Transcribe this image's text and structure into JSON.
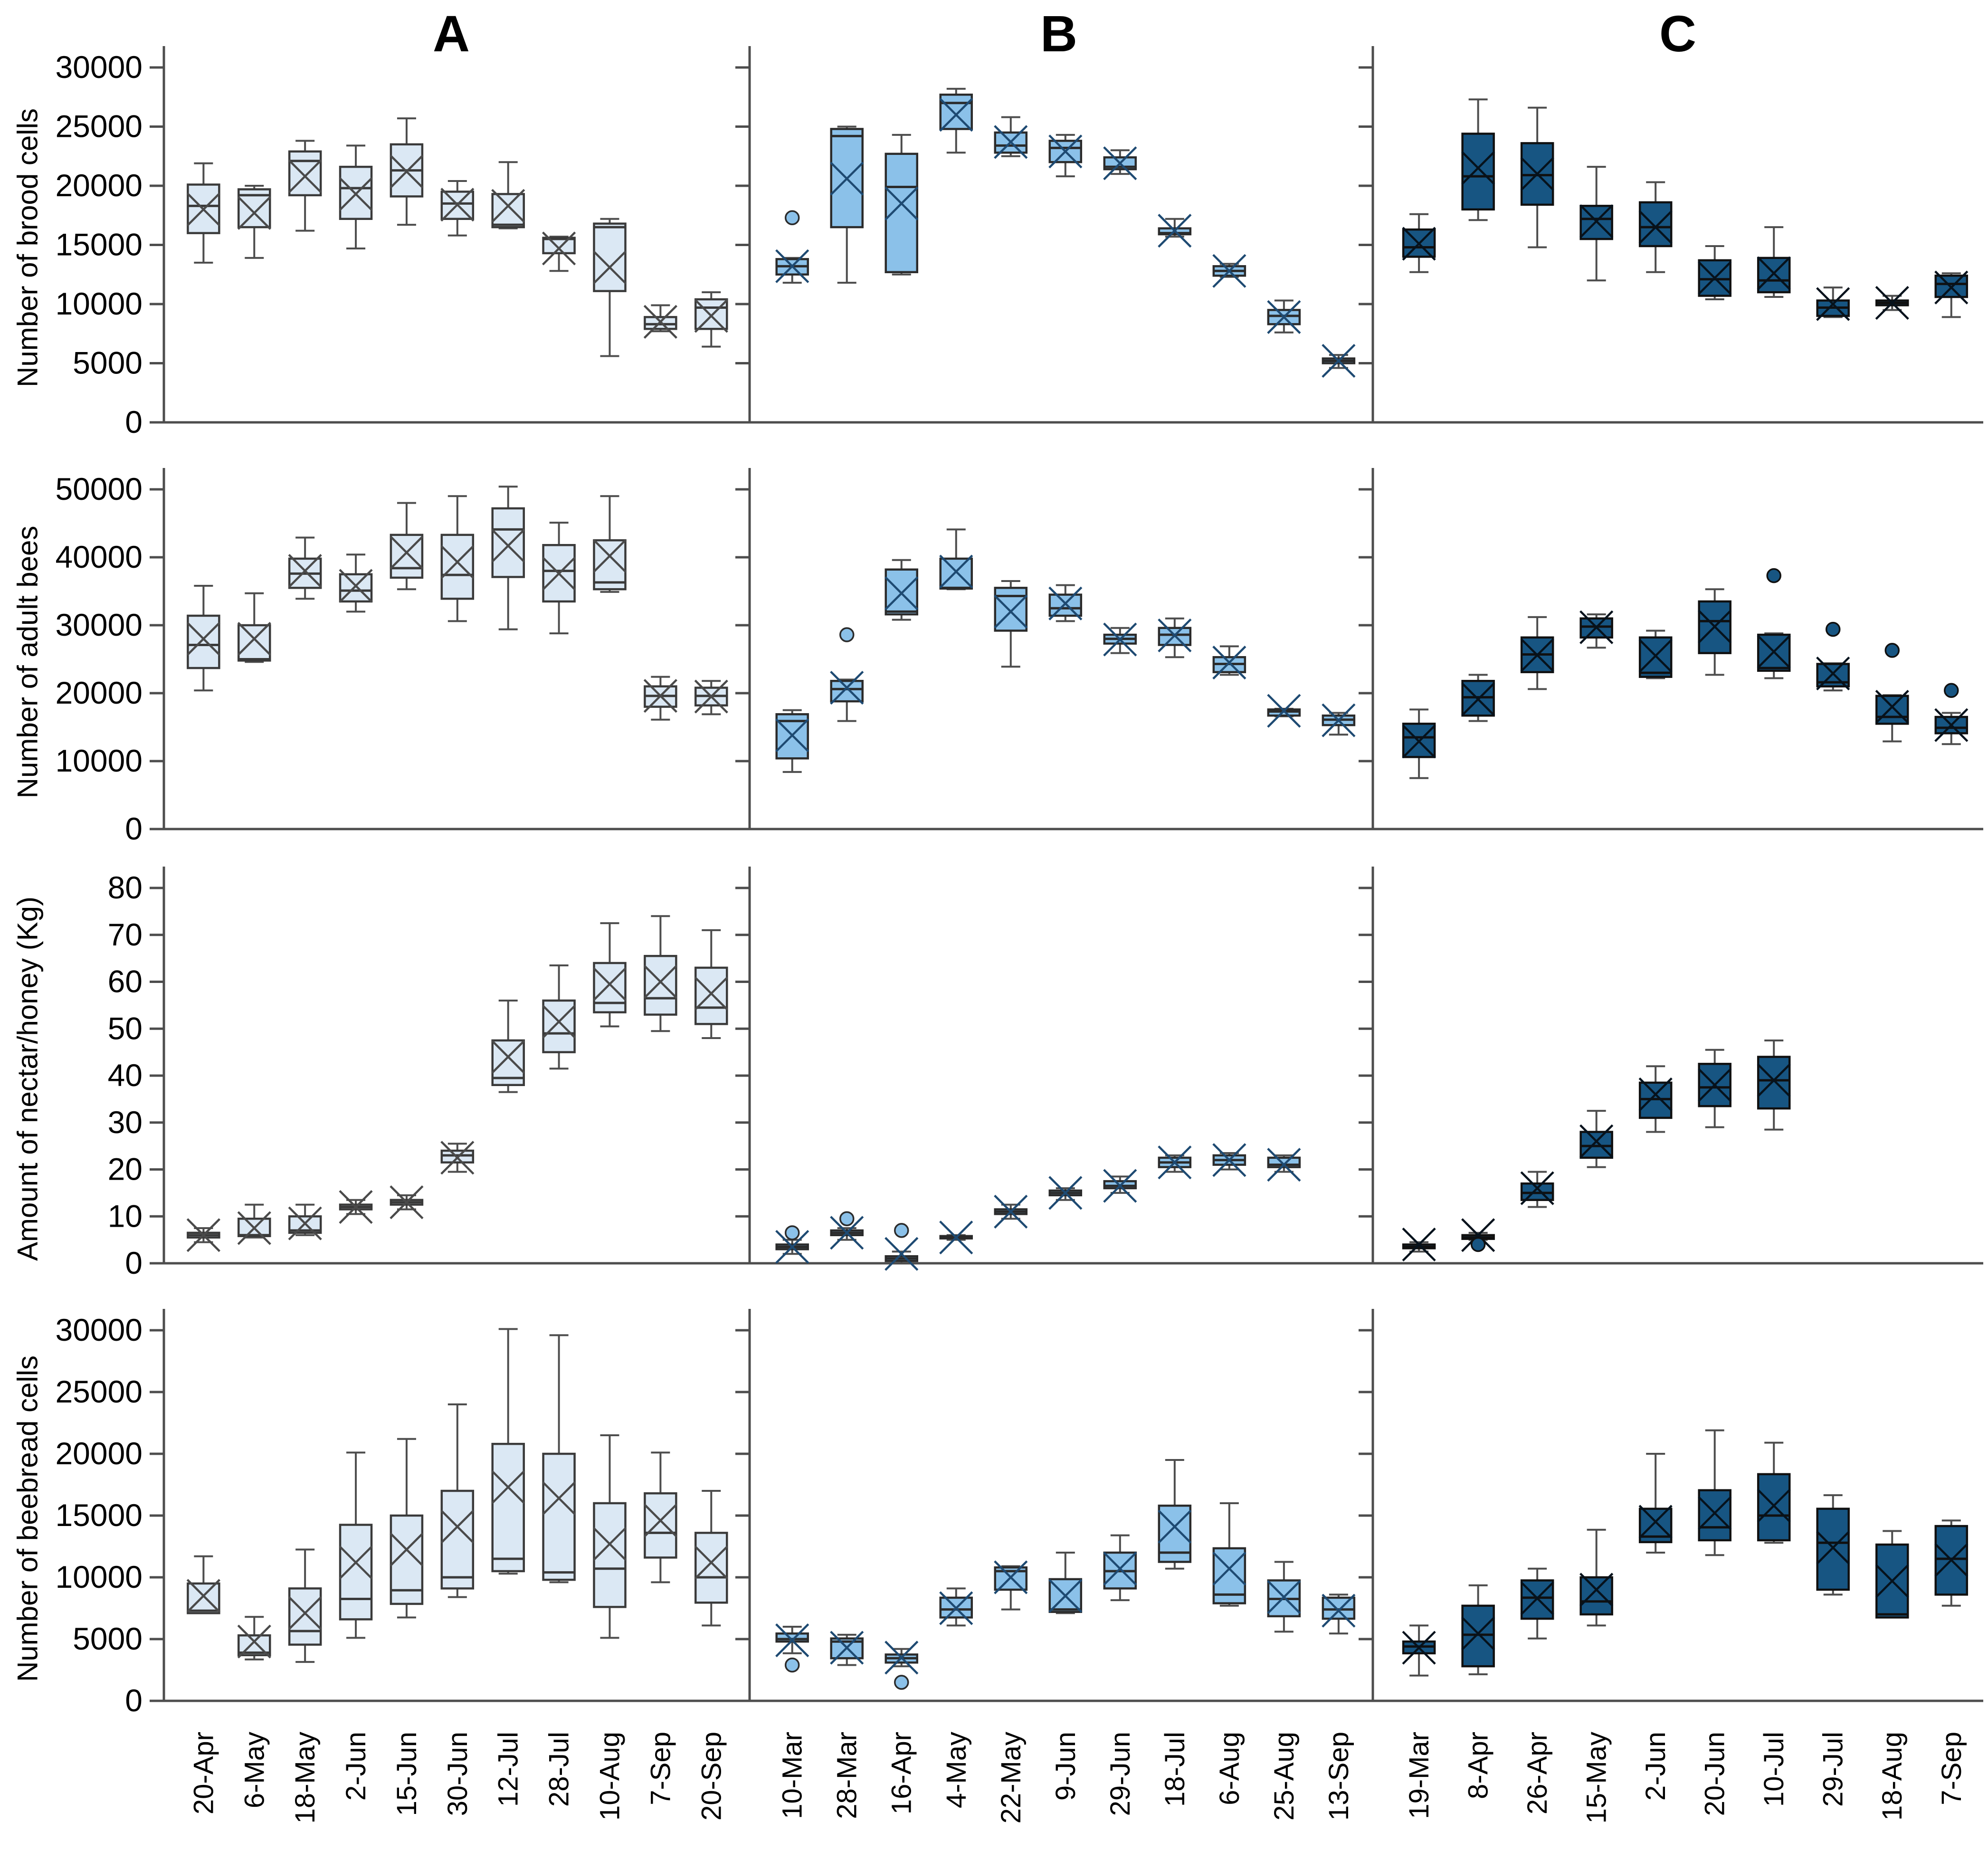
{
  "figure_title": "",
  "chart_data": {
    "type": "box",
    "title": "",
    "xlabel": "",
    "grid": false,
    "legend": "none",
    "columns": [
      {
        "key": "A",
        "label": "A",
        "fill": "#dbe8f4",
        "stroke": "#3a3a3a",
        "mean_stroke": "#4a4a4a",
        "dates": [
          "20-Apr",
          "6-May",
          "18-May",
          "2-Jun",
          "15-Jun",
          "30-Jun",
          "12-Jul",
          "28-Jul",
          "10-Aug",
          "7-Sep",
          "20-Sep"
        ]
      },
      {
        "key": "B",
        "label": "B",
        "fill": "#8bc1e9",
        "stroke": "#2b2b2b",
        "mean_stroke": "#1e4a72",
        "dates": [
          "10-Mar",
          "28-Mar",
          "16-Apr",
          "4-May",
          "22-May",
          "9-Jun",
          "29-Jun",
          "18-Jul",
          "6-Aug",
          "25-Aug",
          "13-Sep"
        ]
      },
      {
        "key": "C",
        "label": "C",
        "fill": "#175582",
        "stroke": "#101010",
        "mean_stroke": "#06121c",
        "dates": [
          "19-Mar",
          "8-Apr",
          "26-Apr",
          "15-May",
          "2-Jun",
          "20-Jun",
          "10-Jul",
          "29-Jul",
          "18-Aug",
          "7-Sep"
        ]
      }
    ],
    "rows": [
      {
        "key": "brood",
        "ylabel": "Number of brood cells",
        "ymin": 0,
        "ymax": 30000,
        "ystep": 5000
      },
      {
        "key": "adult",
        "ylabel": "Number of adult bees",
        "ymin": 0,
        "ymax": 50000,
        "ystep": 10000
      },
      {
        "key": "nectar",
        "ylabel": "Amount of nectar/honey (Kg)",
        "ymin": 0,
        "ymax": 80,
        "ystep": 10
      },
      {
        "key": "beebread",
        "ylabel": "Number of beebread cells",
        "ymin": 0,
        "ymax": 30000,
        "ystep": 5000
      }
    ],
    "box_format": [
      "low",
      "q1",
      "median",
      "q3",
      "high",
      "mean",
      "outliers"
    ],
    "panels": {
      "A": {
        "brood": [
          [
            13500,
            16000,
            18300,
            20100,
            21900,
            18000
          ],
          [
            13900,
            16500,
            19200,
            19700,
            20000,
            17700
          ],
          [
            16200,
            19200,
            22100,
            22900,
            23800,
            20800
          ],
          [
            14700,
            17200,
            19800,
            21600,
            23400,
            19300
          ],
          [
            16700,
            19100,
            21300,
            23500,
            25700,
            21200
          ],
          [
            15800,
            17200,
            18500,
            19500,
            20400,
            18400
          ],
          [
            16400,
            16500,
            16700,
            19300,
            22000,
            18300
          ],
          [
            12800,
            14300,
            15500,
            15600,
            15700,
            14700
          ],
          [
            5600,
            11100,
            16500,
            16800,
            17200,
            13100
          ],
          [
            7700,
            7900,
            8300,
            8900,
            9900,
            8500
          ],
          [
            6400,
            7900,
            9700,
            10400,
            11000,
            9000
          ]
        ],
        "adult": [
          [
            20400,
            23700,
            27100,
            31400,
            35800,
            28000
          ],
          [
            24600,
            24800,
            25000,
            30000,
            34700,
            28000
          ],
          [
            33900,
            35500,
            37600,
            39800,
            42900,
            38000
          ],
          [
            32000,
            33500,
            35100,
            37500,
            40400,
            35800
          ],
          [
            35300,
            37000,
            38400,
            43300,
            48000,
            40700
          ],
          [
            30600,
            33900,
            37400,
            43300,
            49000,
            39300
          ],
          [
            29400,
            37100,
            44100,
            47200,
            50400,
            41700
          ],
          [
            28800,
            33500,
            38000,
            41800,
            45100,
            37600
          ],
          [
            34900,
            35300,
            36300,
            42500,
            49000,
            40200
          ],
          [
            16100,
            18000,
            19600,
            21000,
            22400,
            19600
          ],
          [
            16900,
            18200,
            19600,
            20800,
            21800,
            19500
          ]
        ],
        "nectar": [
          [
            4.5,
            5.5,
            6,
            6.5,
            7.5,
            6
          ],
          [
            5.5,
            5.8,
            6,
            9.5,
            12.5,
            7.5
          ],
          [
            6,
            6.5,
            7,
            10,
            12.5,
            8.5
          ],
          [
            10.5,
            11.5,
            12,
            12.5,
            13.5,
            12
          ],
          [
            11.5,
            12.5,
            13,
            13.5,
            14.5,
            13
          ],
          [
            19.5,
            21.5,
            23,
            24,
            25.5,
            22.5
          ],
          [
            36.5,
            38,
            39.5,
            47.5,
            56,
            44
          ],
          [
            41.5,
            45,
            49,
            56,
            63.5,
            51.5
          ],
          [
            50.5,
            53.5,
            55.5,
            64,
            72.5,
            59.5
          ],
          [
            49.5,
            53,
            56.5,
            65.5,
            74,
            60
          ],
          [
            48,
            51,
            54.5,
            63,
            71,
            57.5
          ]
        ],
        "beebread": [
          [
            7100,
            7100,
            7300,
            9500,
            11700,
            8500
          ],
          [
            3350,
            3700,
            3900,
            5300,
            6800,
            4800
          ],
          [
            3150,
            4550,
            5650,
            9100,
            12250,
            7100
          ],
          [
            5100,
            6600,
            8250,
            14250,
            20100,
            11200
          ],
          [
            6750,
            7850,
            8950,
            15000,
            21200,
            12250
          ],
          [
            8400,
            9100,
            10000,
            17000,
            24000,
            14100
          ],
          [
            10300,
            10500,
            11500,
            20800,
            30100,
            17300
          ],
          [
            9600,
            9800,
            10400,
            20000,
            29600,
            16400
          ],
          [
            5100,
            7600,
            10700,
            16000,
            21500,
            12700
          ],
          [
            9600,
            11600,
            13600,
            16800,
            20100,
            14600
          ],
          [
            6100,
            7950,
            10000,
            13600,
            17000,
            11200
          ]
        ]
      },
      "B": {
        "brood": [
          [
            11800,
            12500,
            13200,
            13800,
            13900,
            13200,
            [
              17300
            ]
          ],
          [
            11800,
            16500,
            24200,
            24800,
            25000,
            20600
          ],
          [
            12500,
            12700,
            19900,
            22700,
            24300,
            18500
          ],
          [
            22800,
            24800,
            27000,
            27700,
            28200,
            26000
          ],
          [
            22500,
            22800,
            23400,
            24500,
            25800,
            23700
          ],
          [
            20800,
            22000,
            23200,
            23800,
            24300,
            22900
          ],
          [
            21000,
            21400,
            21600,
            22400,
            23000,
            21900
          ],
          [
            15700,
            15900,
            16000,
            16400,
            17200,
            16200
          ],
          [
            12300,
            12400,
            12800,
            13200,
            13400,
            12800
          ],
          [
            7600,
            8300,
            9000,
            9500,
            10300,
            8900
          ],
          [
            4600,
            5000,
            5200,
            5400,
            5700,
            5200
          ]
        ],
        "adult": [
          [
            8400,
            10400,
            15900,
            16900,
            17500,
            13800
          ],
          [
            15900,
            18800,
            20600,
            21800,
            22000,
            20800,
            [
              28600
            ]
          ],
          [
            30800,
            31600,
            32000,
            38200,
            39600,
            34700
          ],
          [
            35300,
            35400,
            35500,
            39800,
            44100,
            37900
          ],
          [
            23900,
            29200,
            34300,
            35500,
            36500,
            32000
          ],
          [
            30600,
            31400,
            32500,
            34500,
            35900,
            33200
          ],
          [
            25900,
            27300,
            28000,
            28600,
            29600,
            27900
          ],
          [
            25300,
            27100,
            28600,
            29600,
            31000,
            28500
          ],
          [
            22700,
            23100,
            24300,
            25300,
            26900,
            24500
          ],
          [
            16600,
            16700,
            17300,
            17600,
            17700,
            17400
          ],
          [
            13900,
            15300,
            16100,
            16700,
            17100,
            16000
          ]
        ],
        "nectar": [
          [
            2,
            3,
            3.5,
            4,
            5,
            3.5,
            [
              6.5
            ]
          ],
          [
            5,
            6,
            6.5,
            7,
            7.5,
            6.5,
            [
              9.5
            ]
          ],
          [
            0,
            0.5,
            1,
            1.5,
            2.5,
            2,
            [
              7
            ]
          ],
          [
            5,
            5.3,
            5.5,
            5.8,
            6,
            5.5
          ],
          [
            9.5,
            10.5,
            11,
            11.5,
            12.5,
            11
          ],
          [
            13.5,
            14.5,
            15,
            15.5,
            16,
            15
          ],
          [
            15,
            16,
            16.5,
            17.5,
            18.5,
            16.5
          ],
          [
            19.5,
            20.5,
            21.5,
            22.5,
            23,
            21.5
          ],
          [
            20,
            21,
            22,
            23,
            23.5,
            22
          ],
          [
            19.5,
            20.5,
            21,
            22.5,
            23,
            21
          ],
          null
        ],
        "beebread": [
          [
            3850,
            4800,
            5000,
            5450,
            6000,
            4900,
            [
              2900
            ]
          ],
          [
            2900,
            3450,
            4800,
            5050,
            5350,
            4300
          ],
          [
            2800,
            3100,
            3450,
            3750,
            4200,
            3500,
            [
              1500
            ]
          ],
          [
            6100,
            6750,
            7400,
            8350,
            9100,
            7500
          ],
          [
            7400,
            9000,
            10500,
            10800,
            10900,
            10000
          ],
          [
            7100,
            7200,
            7400,
            9850,
            12000,
            8500
          ],
          [
            8150,
            9100,
            10500,
            12000,
            13400,
            10700
          ],
          [
            10700,
            11250,
            12000,
            15800,
            19500,
            14100
          ],
          [
            7700,
            7900,
            8600,
            12350,
            16000,
            10700
          ],
          [
            5600,
            6850,
            8250,
            9750,
            11250,
            8400
          ],
          [
            5450,
            6650,
            7400,
            8350,
            8600,
            7300
          ]
        ]
      },
      "C": {
        "brood": [
          [
            12700,
            14000,
            14800,
            16300,
            17600,
            15100
          ],
          [
            17100,
            18000,
            20800,
            24400,
            27300,
            21500
          ],
          [
            14800,
            18400,
            20900,
            23600,
            26600,
            21000
          ],
          [
            12000,
            15500,
            17200,
            18300,
            21600,
            17000
          ],
          [
            12700,
            14900,
            16500,
            18600,
            20300,
            16500
          ],
          [
            10400,
            10700,
            12100,
            13700,
            14900,
            12200
          ],
          [
            10600,
            11000,
            12000,
            13900,
            16500,
            12600
          ],
          [
            8900,
            9000,
            9700,
            10300,
            11400,
            10000
          ],
          [
            9500,
            9900,
            10100,
            10300,
            10700,
            10100
          ],
          [
            8900,
            10600,
            11700,
            12400,
            12600,
            11400
          ]
        ],
        "adult": [
          [
            7500,
            10600,
            13500,
            15500,
            17600,
            12900
          ],
          [
            15900,
            16700,
            19400,
            21800,
            22700,
            19100
          ],
          [
            20600,
            23100,
            25700,
            28200,
            31200,
            25600
          ],
          [
            26700,
            28200,
            29800,
            31000,
            31600,
            29700
          ],
          [
            22200,
            22400,
            23000,
            28200,
            29200,
            25500
          ],
          [
            22700,
            25900,
            30600,
            33500,
            35300,
            29800
          ],
          [
            22200,
            23300,
            23700,
            28600,
            28800,
            26100,
            [
              37300
            ]
          ],
          [
            20400,
            21000,
            21600,
            24300,
            24400,
            22900,
            [
              29400
            ]
          ],
          [
            12900,
            15500,
            16500,
            19600,
            19700,
            18000,
            [
              26300
            ]
          ],
          [
            12500,
            14100,
            14900,
            16500,
            17100,
            15300,
            [
              20400
            ]
          ]
        ],
        "nectar": [
          [
            2.5,
            3.2,
            3.5,
            4,
            4.5,
            4
          ],
          [
            5,
            5.2,
            5.5,
            6,
            6.5,
            6,
            [
              4
            ]
          ],
          [
            12,
            13.5,
            15,
            17,
            19.5,
            16
          ],
          [
            20.5,
            22.5,
            25,
            28,
            32.5,
            26
          ],
          [
            28,
            31,
            35,
            38.5,
            42,
            36
          ],
          [
            29,
            33.5,
            37.5,
            42.5,
            45.5,
            38
          ],
          [
            28.5,
            33,
            39,
            44,
            47.5,
            39
          ],
          null,
          null,
          null
        ],
        "beebread": [
          [
            2050,
            3850,
            4400,
            4800,
            6100,
            4300
          ],
          [
            2150,
            2800,
            5350,
            7700,
            9350,
            5450
          ],
          [
            5050,
            6650,
            8350,
            9750,
            10700,
            8300
          ],
          [
            6100,
            7000,
            8050,
            10000,
            13850,
            9000
          ],
          [
            12000,
            12850,
            13300,
            15550,
            20000,
            14500
          ],
          [
            11800,
            13000,
            14050,
            17050,
            21900,
            15200
          ],
          [
            12800,
            13000,
            15000,
            18350,
            20900,
            15800
          ],
          [
            8600,
            9000,
            12800,
            15550,
            16650,
            12400
          ],
          [
            6750,
            6750,
            7000,
            12650,
            13750,
            9700
          ],
          [
            7700,
            8600,
            11500,
            14150,
            14600,
            11400
          ]
        ]
      }
    }
  }
}
